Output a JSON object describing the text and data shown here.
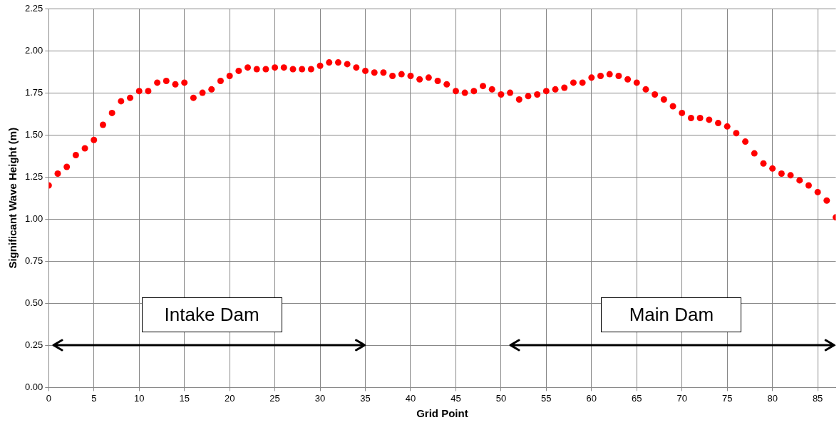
{
  "chart_data": {
    "type": "scatter",
    "xlabel": "Grid Point",
    "ylabel": "Significant Wave Height (m)",
    "x": [
      0,
      1,
      2,
      3,
      4,
      5,
      6,
      7,
      8,
      9,
      10,
      11,
      12,
      13,
      14,
      15,
      16,
      17,
      18,
      19,
      20,
      21,
      22,
      23,
      24,
      25,
      26,
      27,
      28,
      29,
      30,
      31,
      32,
      33,
      34,
      35,
      36,
      37,
      38,
      39,
      40,
      41,
      42,
      43,
      44,
      45,
      46,
      47,
      48,
      49,
      50,
      51,
      52,
      53,
      54,
      55,
      56,
      57,
      58,
      59,
      60,
      61,
      62,
      63,
      64,
      65,
      66,
      67,
      68,
      69,
      70,
      71,
      72,
      73,
      74,
      75,
      76,
      77,
      78,
      79,
      80,
      81,
      82,
      83,
      84,
      85,
      86,
      87
    ],
    "series": [
      {
        "color": "#ff0000",
        "values": [
          1.2,
          1.27,
          1.31,
          1.38,
          1.42,
          1.47,
          1.56,
          1.63,
          1.7,
          1.72,
          1.76,
          1.76,
          1.81,
          1.82,
          1.8,
          1.81,
          1.72,
          1.75,
          1.77,
          1.82,
          1.85,
          1.88,
          1.9,
          1.89,
          1.89,
          1.9,
          1.9,
          1.89,
          1.89,
          1.89,
          1.91,
          1.93,
          1.93,
          1.92,
          1.9,
          1.88,
          1.87,
          1.87,
          1.85,
          1.86,
          1.85,
          1.83,
          1.84,
          1.82,
          1.8,
          1.76,
          1.75,
          1.76,
          1.79,
          1.77,
          1.74,
          1.75,
          1.71,
          1.73,
          1.74,
          1.76,
          1.77,
          1.78,
          1.81,
          1.81,
          1.84,
          1.85,
          1.86,
          1.85,
          1.83,
          1.81,
          1.77,
          1.74,
          1.71,
          1.67,
          1.63,
          1.6,
          1.6,
          1.59,
          1.57,
          1.55,
          1.51,
          1.46,
          1.39,
          1.33,
          1.3,
          1.27,
          1.26,
          1.23,
          1.2,
          1.16,
          1.11,
          1.01
        ]
      }
    ],
    "xlim": [
      0,
      87
    ],
    "xticks": [
      0,
      5,
      10,
      15,
      20,
      25,
      30,
      35,
      40,
      45,
      50,
      55,
      60,
      65,
      70,
      75,
      80,
      85
    ],
    "ylim": [
      0,
      2.25
    ],
    "yticks": [
      {
        "value": 0,
        "label": "0.00"
      },
      {
        "value": 0.25,
        "label": "0.25"
      },
      {
        "value": 0.5,
        "label": "0.50"
      },
      {
        "value": 0.75,
        "label": "0.75"
      },
      {
        "value": 1,
        "label": "1.00"
      },
      {
        "value": 1.25,
        "label": "1.25"
      },
      {
        "value": 1.5,
        "label": "1.50"
      },
      {
        "value": 1.75,
        "label": "1.75"
      },
      {
        "value": 2,
        "label": "2.00"
      },
      {
        "value": 2.25,
        "label": "2.25"
      }
    ],
    "annotations": [
      "Intake Dam",
      "Main Dam"
    ],
    "grid": true,
    "legend": false,
    "marker": "circle"
  }
}
